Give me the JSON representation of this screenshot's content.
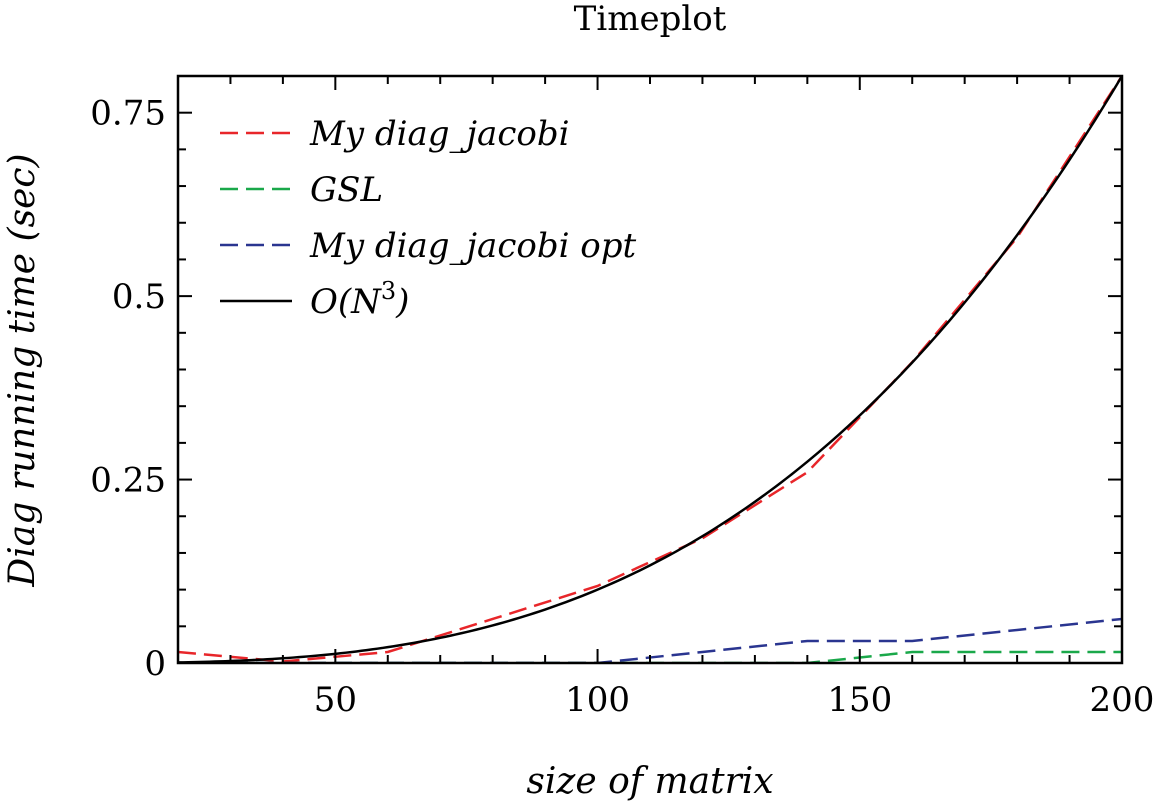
{
  "chart_data": {
    "type": "line",
    "title": "Timeplot",
    "xlabel": "size of matrix",
    "ylabel": "Diag running time (sec)",
    "xlim": [
      20,
      200
    ],
    "ylim": [
      0,
      0.8
    ],
    "x_ticks": [
      50,
      100,
      150,
      200
    ],
    "x_tick_labels": [
      "50",
      "100",
      "150",
      "200"
    ],
    "y_ticks": [
      0,
      0.25,
      0.5,
      0.75
    ],
    "y_tick_labels": [
      "0",
      "0.25",
      "0.5",
      "0.75"
    ],
    "grid": false,
    "legend_position": "top-left",
    "series": [
      {
        "name": "My diag_jacobi",
        "style": "dashed",
        "color": "#e8262a",
        "x": [
          20,
          40,
          60,
          80,
          100,
          120,
          140,
          160,
          180,
          200
        ],
        "y": [
          0.015,
          0.002,
          0.015,
          0.06,
          0.105,
          0.17,
          0.26,
          0.41,
          0.58,
          0.8
        ]
      },
      {
        "name": "GSL",
        "style": "dashed",
        "color": "#1aa84a",
        "x": [
          20,
          40,
          60,
          80,
          100,
          120,
          140,
          160,
          180,
          200
        ],
        "y": [
          0,
          0,
          0,
          0,
          0,
          0,
          0,
          0.015,
          0.015,
          0.015
        ]
      },
      {
        "name": "My diag_jacobi opt",
        "style": "dashed",
        "color": "#2a3590",
        "x": [
          20,
          40,
          60,
          80,
          100,
          120,
          140,
          160,
          180,
          200
        ],
        "y": [
          0,
          0,
          0,
          0,
          0,
          0.015,
          0.03,
          0.03,
          0.045,
          0.06
        ]
      },
      {
        "name": "O(N^3)",
        "style": "solid",
        "color": "#000000",
        "function": "cube_fit",
        "coefficient": 1e-07
      }
    ]
  }
}
